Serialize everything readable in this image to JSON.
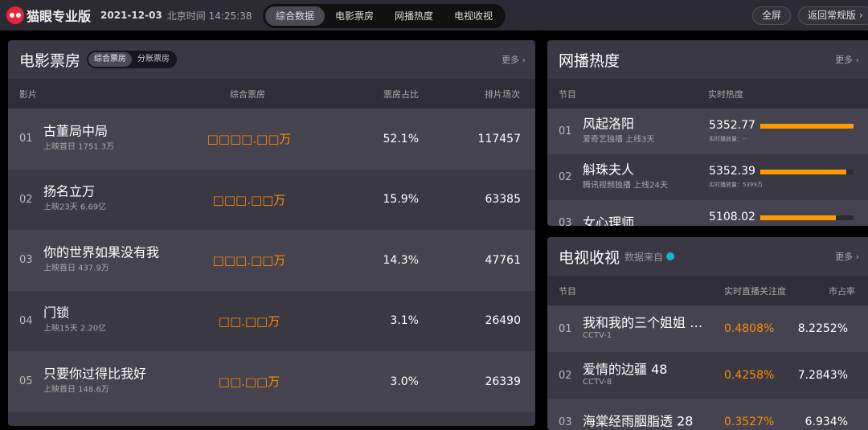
{
  "topbar": {
    "brand": "猫眼专业版",
    "date": "2021-12-03",
    "beijing_time": "北京时间 14:25:38",
    "tabs": [
      "综合数据",
      "电影票房",
      "网播热度",
      "电视收视"
    ],
    "active_tab": 0,
    "fullscreen": "全屏",
    "back": "返回常规版 ›"
  },
  "movie": {
    "title": "电影票房",
    "seg": [
      "综合票房",
      "分账票房"
    ],
    "more": "更多 ›",
    "cols": [
      "影片",
      "综合票房",
      "票房占比",
      "排片场次"
    ],
    "rows": [
      {
        "rank": "01",
        "name": "古董局中局",
        "sub": "上映首日  1751.3万",
        "box": "□□□□.□□万",
        "share": "52.1%",
        "shows": "117457"
      },
      {
        "rank": "02",
        "name": "扬名立万",
        "sub": "上映23天  6.69亿",
        "box": "□□□.□□万",
        "share": "15.9%",
        "shows": "63385"
      },
      {
        "rank": "03",
        "name": "你的世界如果没有我",
        "sub": "上映首日  437.9万",
        "box": "□□□.□□万",
        "share": "14.3%",
        "shows": "47761"
      },
      {
        "rank": "04",
        "name": "门锁",
        "sub": "上映15天  2.20亿",
        "box": "□□.□□万",
        "share": "3.1%",
        "shows": "26490"
      },
      {
        "rank": "05",
        "name": "只要你过得比我好",
        "sub": "上映首日  148.6万",
        "box": "□□.□□万",
        "share": "3.0%",
        "shows": "26339"
      }
    ]
  },
  "web": {
    "title": "网播热度",
    "more": "更多 ›",
    "cols": [
      "节目",
      "实时热度"
    ],
    "rows": [
      {
        "rank": "01",
        "name": "风起洛阳",
        "sub": "爱奇艺独播  上线3天",
        "heat": "5352.77",
        "plays": "实时播放量：--",
        "pct": 100
      },
      {
        "rank": "02",
        "name": "斛珠夫人",
        "sub": "腾讯视频独播  上线24天",
        "heat": "5352.39",
        "plays": "实时播放量：5399万",
        "pct": 92
      },
      {
        "rank": "03",
        "name": "女心理师",
        "sub": "",
        "heat": "5108.02",
        "plays": "",
        "pct": 81
      }
    ]
  },
  "tv": {
    "title": "电视收视",
    "source": "数据来自",
    "more": "更多 ›",
    "cols": [
      "节目",
      "实时直播关注度",
      "市占率"
    ],
    "rows": [
      {
        "rank": "01",
        "name": "我和我的三个姐姐 …",
        "channel": "CCTV-1",
        "attention": "0.4808%",
        "share": "8.2252%"
      },
      {
        "rank": "02",
        "name": "爱情的边疆 48",
        "channel": "CCTV-8",
        "attention": "0.4258%",
        "share": "7.2843%"
      },
      {
        "rank": "03",
        "name": "海棠经雨胭脂透 28",
        "channel": "",
        "attention": "0.3527%",
        "share": "6.934%"
      }
    ]
  },
  "colors": {
    "accent": "#ff8c00",
    "bar": "#ff9a00"
  }
}
